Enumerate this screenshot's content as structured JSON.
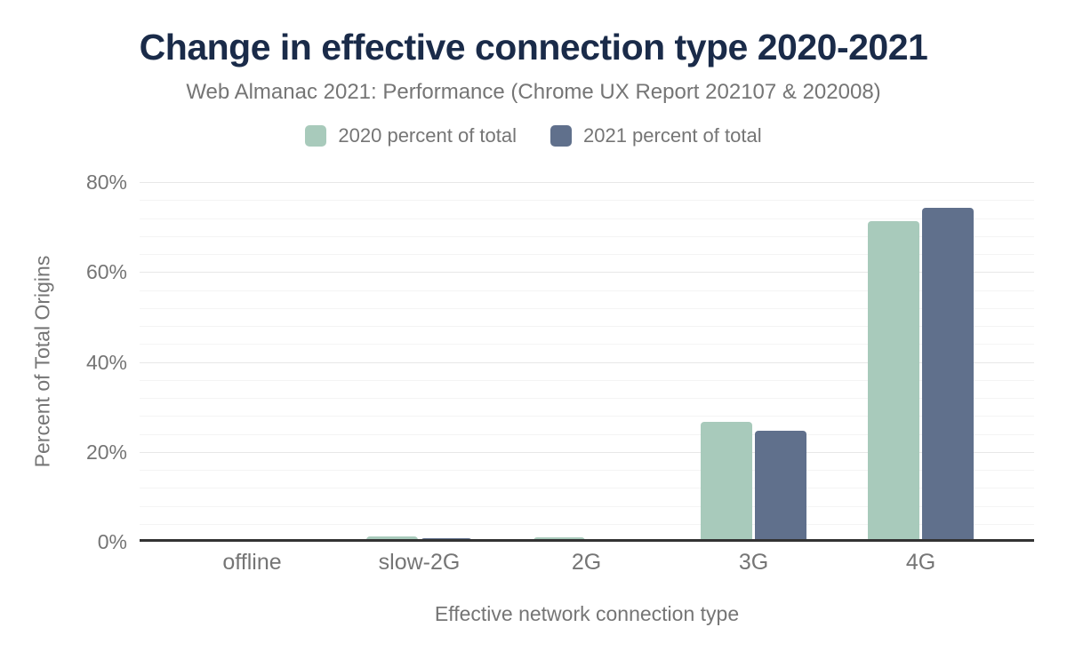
{
  "title": "Change in effective connection type 2020-2021",
  "subtitle": "Web Almanac 2021: Performance (Chrome UX Report 202107 & 202008)",
  "colors": {
    "title_text": "#1a2b49",
    "muted_text": "#757575",
    "axis_line": "#333333",
    "grid_major": "#e8e8e8",
    "grid_minor": "#f4f4f4",
    "series_2020": "#a8cabb",
    "series_2021": "#60708c",
    "background": "#ffffff"
  },
  "chart_data": {
    "type": "bar",
    "title": "Change in effective connection type 2020-2021",
    "subtitle": "Web Almanac 2021: Performance (Chrome UX Report 202107 & 202008)",
    "categories": [
      "offline",
      "slow-2G",
      "2G",
      "3G",
      "4G"
    ],
    "series": [
      {
        "name": "2020 percent of total",
        "color": "#a8cabb",
        "values": [
          0.0,
          1.1,
          0.9,
          26.7,
          71.3
        ]
      },
      {
        "name": "2021 percent of total",
        "color": "#60708c",
        "values": [
          0.0,
          0.8,
          0.2,
          24.7,
          74.2
        ]
      }
    ],
    "xlabel": "Effective network connection type",
    "ylabel": "Percent of Total Origins",
    "ylim": [
      0,
      80
    ],
    "ytick_values": [
      0,
      20,
      40,
      60,
      80
    ],
    "ytick_labels": [
      "0%",
      "20%",
      "40%",
      "60%",
      "80%"
    ],
    "grid": {
      "major_step": 20,
      "minor_step": 4
    },
    "legend_position": "top",
    "value_unit": "percent"
  }
}
